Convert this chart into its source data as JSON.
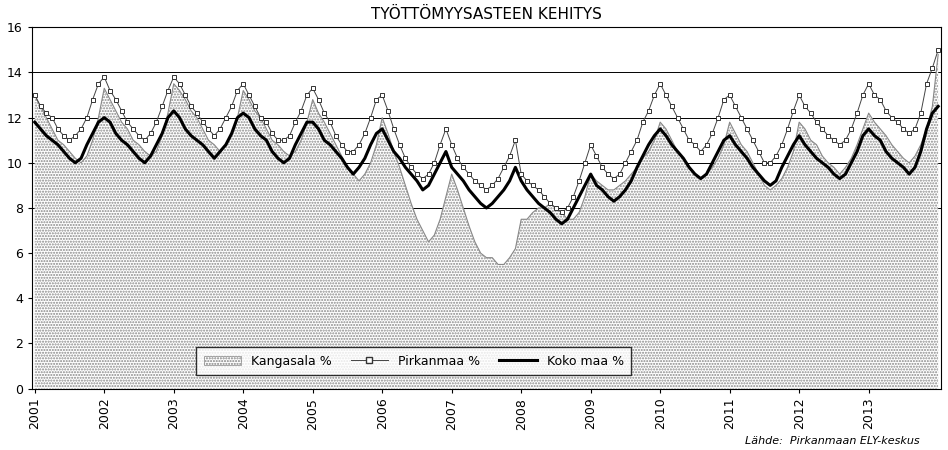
{
  "title": "TYÖTTÖMYYSASTEEN KEHITYS",
  "ylim": [
    0,
    16
  ],
  "yticks": [
    0,
    2,
    4,
    6,
    8,
    10,
    12,
    14,
    16
  ],
  "hlines": [
    8,
    10,
    12,
    14
  ],
  "source_text": "Lähde:  Pirkanmaan ELY-keskus",
  "legend_labels": [
    "Kangasala %",
    "Pirkanmaa %",
    "Koko maa %"
  ],
  "kangasala": [
    13.0,
    12.5,
    12.0,
    11.5,
    11.0,
    10.8,
    10.5,
    10.2,
    10.0,
    10.3,
    11.0,
    12.0,
    13.3,
    12.8,
    12.3,
    11.8,
    11.5,
    11.0,
    10.8,
    10.5,
    10.3,
    10.5,
    11.2,
    12.2,
    13.5,
    13.2,
    12.8,
    12.3,
    12.0,
    11.5,
    11.0,
    10.8,
    10.5,
    10.8,
    11.2,
    12.0,
    13.2,
    12.8,
    12.3,
    12.0,
    11.5,
    11.0,
    10.8,
    10.5,
    10.3,
    10.5,
    11.0,
    11.8,
    12.8,
    12.2,
    11.8,
    11.3,
    10.8,
    10.3,
    9.8,
    9.5,
    9.2,
    9.5,
    10.0,
    10.8,
    12.0,
    11.3,
    10.5,
    9.8,
    9.0,
    8.2,
    7.5,
    7.0,
    6.5,
    6.8,
    7.5,
    8.5,
    9.5,
    8.8,
    8.0,
    7.2,
    6.5,
    6.0,
    5.8,
    5.8,
    5.5,
    5.5,
    5.8,
    6.2,
    7.5,
    7.5,
    7.8,
    8.0,
    8.0,
    8.2,
    8.0,
    7.8,
    7.5,
    7.5,
    7.8,
    8.5,
    9.5,
    9.2,
    9.0,
    8.8,
    8.8,
    9.0,
    9.2,
    9.5,
    9.8,
    10.2,
    10.5,
    11.0,
    11.8,
    11.5,
    11.0,
    10.5,
    10.2,
    9.8,
    9.5,
    9.3,
    9.5,
    9.8,
    10.2,
    10.8,
    11.8,
    11.3,
    10.8,
    10.5,
    10.0,
    9.5,
    9.0,
    8.8,
    9.0,
    9.3,
    9.8,
    10.5,
    11.8,
    11.5,
    11.0,
    10.8,
    10.3,
    10.0,
    9.8,
    9.5,
    9.8,
    10.2,
    10.8,
    11.5,
    12.2,
    11.8,
    11.5,
    11.2,
    10.8,
    10.5,
    10.2,
    10.0,
    10.3,
    10.8,
    11.5,
    12.5,
    14.8
  ],
  "pirkanmaa": [
    13.0,
    12.5,
    12.2,
    12.0,
    11.5,
    11.2,
    11.0,
    11.2,
    11.5,
    12.0,
    12.8,
    13.5,
    13.8,
    13.2,
    12.8,
    12.3,
    11.8,
    11.5,
    11.2,
    11.0,
    11.3,
    11.8,
    12.5,
    13.2,
    13.8,
    13.5,
    13.0,
    12.5,
    12.2,
    11.8,
    11.5,
    11.2,
    11.5,
    12.0,
    12.5,
    13.2,
    13.5,
    13.0,
    12.5,
    12.0,
    11.8,
    11.3,
    11.0,
    11.0,
    11.2,
    11.8,
    12.3,
    13.0,
    13.3,
    12.8,
    12.2,
    11.8,
    11.2,
    10.8,
    10.5,
    10.5,
    10.8,
    11.3,
    12.0,
    12.8,
    13.0,
    12.3,
    11.5,
    10.8,
    10.2,
    9.8,
    9.5,
    9.3,
    9.5,
    10.0,
    10.8,
    11.5,
    10.8,
    10.2,
    9.8,
    9.5,
    9.2,
    9.0,
    8.8,
    9.0,
    9.3,
    9.8,
    10.3,
    11.0,
    9.5,
    9.2,
    9.0,
    8.8,
    8.5,
    8.2,
    8.0,
    7.8,
    8.0,
    8.5,
    9.2,
    10.0,
    10.8,
    10.3,
    9.8,
    9.5,
    9.3,
    9.5,
    10.0,
    10.5,
    11.0,
    11.8,
    12.3,
    13.0,
    13.5,
    13.0,
    12.5,
    12.0,
    11.5,
    11.0,
    10.8,
    10.5,
    10.8,
    11.3,
    12.0,
    12.8,
    13.0,
    12.5,
    12.0,
    11.5,
    11.0,
    10.5,
    10.0,
    10.0,
    10.3,
    10.8,
    11.5,
    12.3,
    13.0,
    12.5,
    12.2,
    11.8,
    11.5,
    11.2,
    11.0,
    10.8,
    11.0,
    11.5,
    12.2,
    13.0,
    13.5,
    13.0,
    12.8,
    12.3,
    12.0,
    11.8,
    11.5,
    11.3,
    11.5,
    12.2,
    13.5,
    14.2,
    15.0
  ],
  "koko_maa": [
    11.8,
    11.5,
    11.2,
    11.0,
    10.8,
    10.5,
    10.2,
    10.0,
    10.2,
    10.8,
    11.3,
    11.8,
    12.0,
    11.8,
    11.3,
    11.0,
    10.8,
    10.5,
    10.2,
    10.0,
    10.3,
    10.8,
    11.3,
    12.0,
    12.3,
    12.0,
    11.5,
    11.2,
    11.0,
    10.8,
    10.5,
    10.2,
    10.5,
    10.8,
    11.3,
    12.0,
    12.2,
    12.0,
    11.5,
    11.2,
    11.0,
    10.5,
    10.2,
    10.0,
    10.2,
    10.8,
    11.3,
    11.8,
    11.8,
    11.5,
    11.0,
    10.8,
    10.5,
    10.2,
    9.8,
    9.5,
    9.8,
    10.2,
    10.8,
    11.3,
    11.5,
    11.0,
    10.5,
    10.2,
    9.8,
    9.5,
    9.2,
    8.8,
    9.0,
    9.5,
    10.0,
    10.5,
    9.8,
    9.5,
    9.2,
    8.8,
    8.5,
    8.2,
    8.0,
    8.2,
    8.5,
    8.8,
    9.2,
    9.8,
    9.2,
    8.8,
    8.5,
    8.2,
    8.0,
    7.8,
    7.5,
    7.3,
    7.5,
    8.0,
    8.5,
    9.0,
    9.5,
    9.0,
    8.8,
    8.5,
    8.3,
    8.5,
    8.8,
    9.2,
    9.8,
    10.3,
    10.8,
    11.2,
    11.5,
    11.2,
    10.8,
    10.5,
    10.2,
    9.8,
    9.5,
    9.3,
    9.5,
    10.0,
    10.5,
    11.0,
    11.2,
    10.8,
    10.5,
    10.2,
    9.8,
    9.5,
    9.2,
    9.0,
    9.2,
    9.8,
    10.3,
    10.8,
    11.2,
    10.8,
    10.5,
    10.2,
    10.0,
    9.8,
    9.5,
    9.3,
    9.5,
    10.0,
    10.5,
    11.2,
    11.5,
    11.2,
    11.0,
    10.5,
    10.2,
    10.0,
    9.8,
    9.5,
    9.8,
    10.5,
    11.5,
    12.2,
    12.5
  ],
  "x_tick_positions": [
    0,
    12,
    24,
    36,
    48,
    60,
    72,
    84,
    96,
    108,
    120,
    132,
    144
  ],
  "x_tick_labels": [
    "2001",
    "2002",
    "2003",
    "2004",
    "2005",
    "2006",
    "2007",
    "2008",
    "2009",
    "2010",
    "2011",
    "2012",
    "2013"
  ],
  "background_color": "#ffffff"
}
